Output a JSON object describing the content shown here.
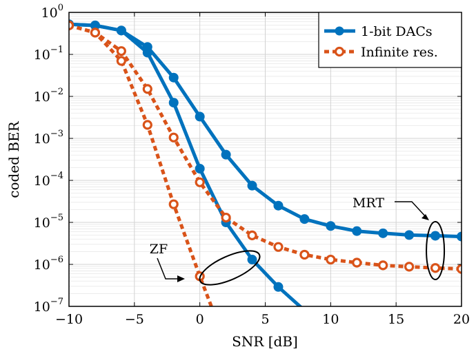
{
  "chart_data": {
    "type": "line",
    "xlabel": "SNR [dB]",
    "ylabel": "coded BER",
    "xlim": [
      -10,
      20
    ],
    "ylim": [
      1e-07,
      1
    ],
    "yscale": "log",
    "grid": true,
    "legend_position": "top-right",
    "x_ticks": [
      {
        "value": -10,
        "label": "−10"
      },
      {
        "value": -5,
        "label": "−5"
      },
      {
        "value": 0,
        "label": "0"
      },
      {
        "value": 5,
        "label": "5"
      },
      {
        "value": 10,
        "label": "10"
      },
      {
        "value": 15,
        "label": "15"
      },
      {
        "value": 20,
        "label": "20"
      }
    ],
    "y_ticks": [
      {
        "value": 1,
        "mantissa": "10",
        "exponent": "0"
      },
      {
        "value": 0.1,
        "mantissa": "10",
        "exponent": "−1"
      },
      {
        "value": 0.01,
        "mantissa": "10",
        "exponent": "−2"
      },
      {
        "value": 0.001,
        "mantissa": "10",
        "exponent": "−3"
      },
      {
        "value": 0.0001,
        "mantissa": "10",
        "exponent": "−4"
      },
      {
        "value": 1e-05,
        "mantissa": "10",
        "exponent": "−5"
      },
      {
        "value": 1e-06,
        "mantissa": "10",
        "exponent": "−6"
      },
      {
        "value": 1e-07,
        "mantissa": "10",
        "exponent": "−7"
      }
    ],
    "legend": [
      {
        "label": "1-bit DACs",
        "color": "#0072bd",
        "style": "solid"
      },
      {
        "label": "Infinite res.",
        "color": "#d95319",
        "style": "dashed"
      }
    ],
    "series": [
      {
        "legend_index": 0,
        "color": "#0072bd",
        "style": "solid",
        "group": "MRT",
        "x": [
          -10,
          -8,
          -6,
          -4,
          -2,
          0,
          2,
          4,
          6,
          8,
          10,
          12,
          14,
          16,
          18,
          20
        ],
        "y": [
          0.52,
          0.49,
          0.37,
          0.15,
          0.028,
          0.0033,
          0.00041,
          7.5e-05,
          2.5e-05,
          1.2e-05,
          8.2e-06,
          6.2e-06,
          5.5e-06,
          5e-06,
          4.8e-06,
          4.6e-06
        ]
      },
      {
        "legend_index": 0,
        "color": "#0072bd",
        "style": "solid",
        "group": "ZF",
        "x": [
          -10,
          -8,
          -6,
          -4,
          -2,
          0,
          2,
          4,
          6,
          8
        ],
        "y": [
          0.52,
          0.49,
          0.37,
          0.11,
          0.0071,
          0.00019,
          1e-05,
          1.3e-06,
          2.9e-07,
          8e-08
        ]
      },
      {
        "legend_index": 1,
        "color": "#d95319",
        "style": "dashed",
        "group": "MRT",
        "x": [
          -10,
          -8,
          -6,
          -4,
          -2,
          0,
          2,
          4,
          6,
          8,
          10,
          12,
          14,
          16,
          18,
          20
        ],
        "y": [
          0.49,
          0.33,
          0.12,
          0.015,
          0.00105,
          9e-05,
          1.3e-05,
          4.9e-06,
          2.6e-06,
          1.7e-06,
          1.3e-06,
          1.1e-06,
          9.5e-07,
          8.8e-07,
          8.2e-07,
          7.8e-07
        ]
      },
      {
        "legend_index": 1,
        "color": "#d95319",
        "style": "dashed",
        "group": "ZF",
        "x": [
          -10,
          -8,
          -6,
          -4,
          -2,
          0,
          1
        ],
        "y": [
          0.49,
          0.33,
          0.07,
          0.0021,
          2.7e-05,
          5.2e-07,
          8e-08
        ]
      }
    ],
    "annotations": [
      {
        "text": "MRT",
        "group": "MRT"
      },
      {
        "text": "ZF",
        "group": "ZF"
      }
    ]
  }
}
